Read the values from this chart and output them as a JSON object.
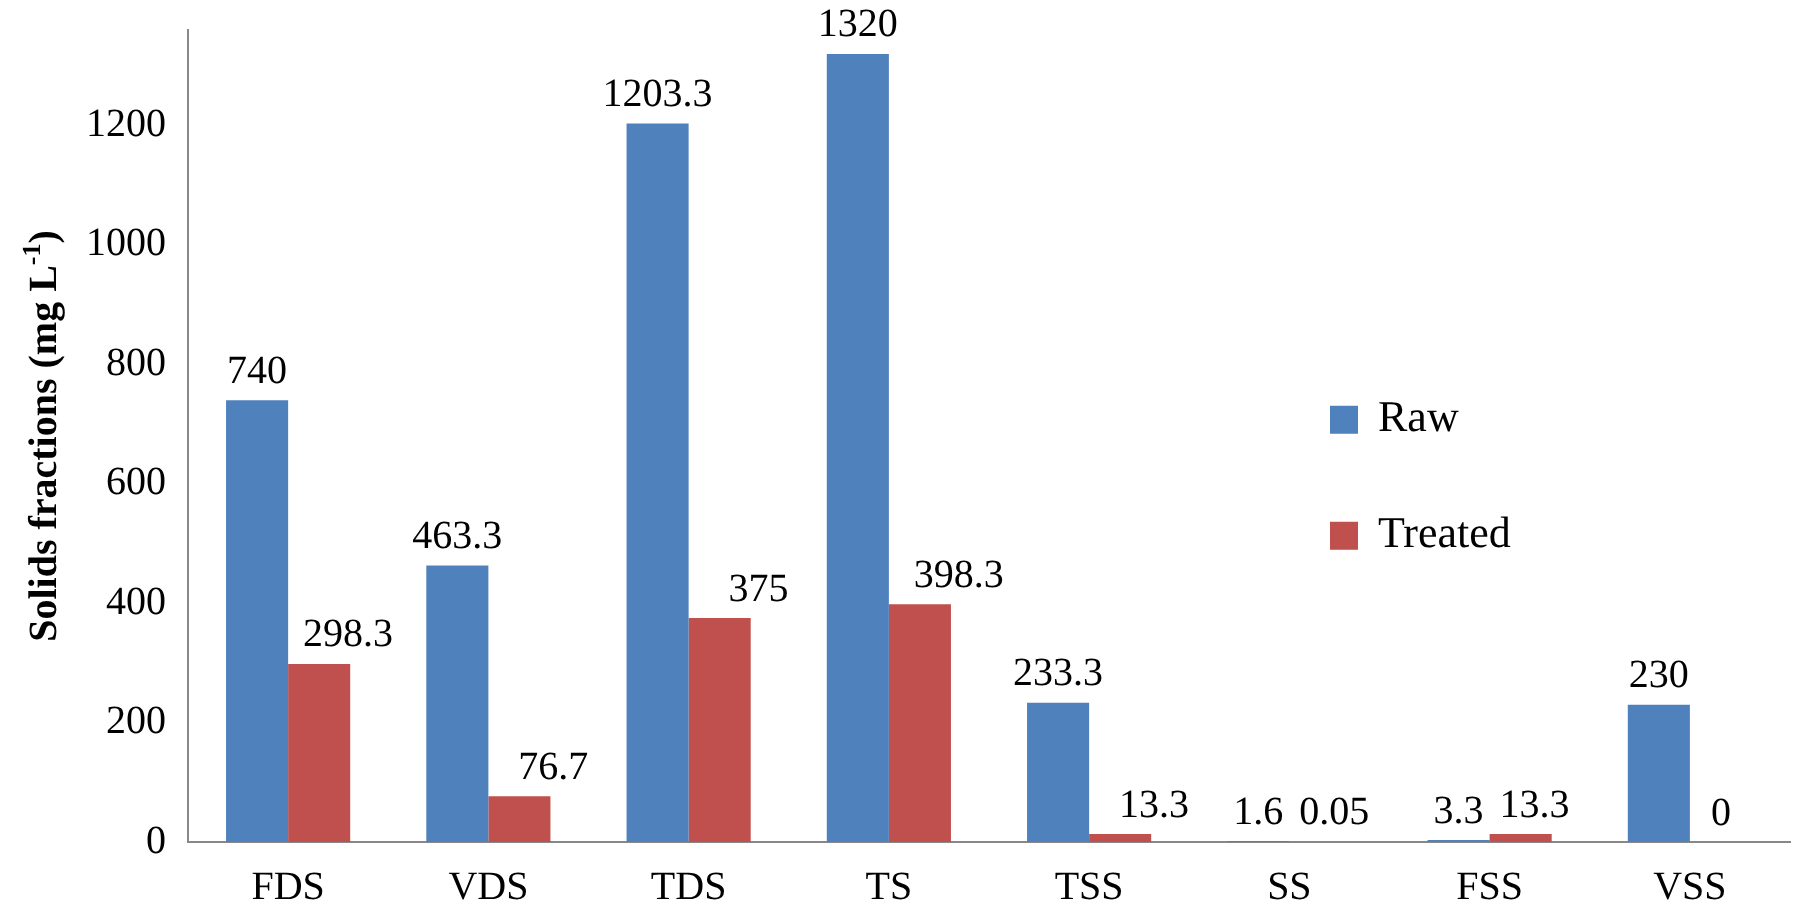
{
  "chart_data": {
    "type": "bar",
    "ylabel": "Solids fractions (mg L$^{-1}$)",
    "categories": [
      "FDS",
      "VDS",
      "TDS",
      "TS",
      "TSS",
      "SS",
      "FSS",
      "VSS"
    ],
    "series": [
      {
        "name": "Raw",
        "color": "#4f81bd",
        "values": [
          740,
          463.3,
          1203.3,
          1320,
          233.3,
          1.6,
          3.3,
          230
        ]
      },
      {
        "name": "Treated",
        "color": "#c0504d",
        "values": [
          298.3,
          76.7,
          375,
          398.3,
          13.3,
          0.05,
          13.3,
          0
        ]
      }
    ],
    "ylim": [
      0,
      1360
    ],
    "yticks": [
      0,
      200,
      400,
      600,
      800,
      1000,
      1200
    ],
    "grid": false,
    "legend": "right",
    "data_labels": true
  }
}
